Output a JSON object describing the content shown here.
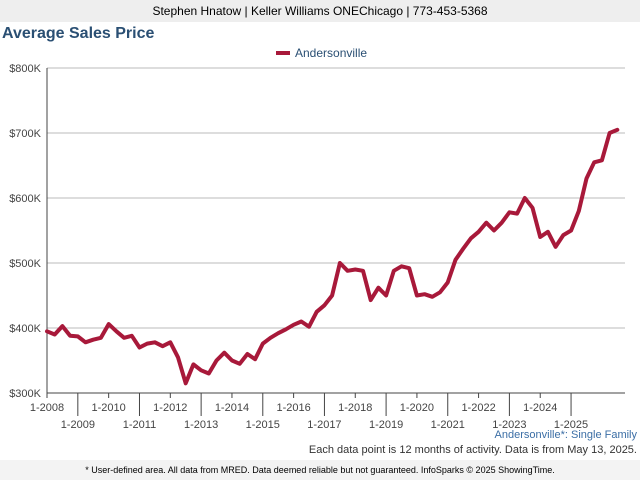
{
  "header": {
    "banner": "Stephen Hnatow | Keller Williams ONEChicago | 773-453-5368"
  },
  "chart_data": {
    "type": "line",
    "title": "Average Sales Price",
    "legend": {
      "placement": "top-center",
      "entries": [
        "Andersonville"
      ]
    },
    "y_ticks": [
      "$300K",
      "$400K",
      "$500K",
      "$600K",
      "$700K",
      "$800K"
    ],
    "ylim": [
      300000,
      800000
    ],
    "x_ticks_upper": [
      "1-2008",
      "1-2010",
      "1-2012",
      "1-2014",
      "1-2016",
      "1-2018",
      "1-2020",
      "1-2022",
      "1-2024"
    ],
    "x_ticks_lower": [
      "1-2009",
      "1-2011",
      "1-2013",
      "1-2015",
      "1-2017",
      "1-2019",
      "1-2021",
      "1-2023",
      "1-2025"
    ],
    "grid": "horizontal",
    "colors": {
      "series": "#a8193a",
      "grid": "#bbbbbb",
      "axis": "#444444"
    },
    "series": [
      {
        "name": "Andersonville",
        "points": [
          [
            "2008-01",
            395000
          ],
          [
            "2008-04",
            390000
          ],
          [
            "2008-07",
            403000
          ],
          [
            "2008-10",
            388000
          ],
          [
            "2009-01",
            387000
          ],
          [
            "2009-04",
            378000
          ],
          [
            "2009-07",
            382000
          ],
          [
            "2009-10",
            385000
          ],
          [
            "2010-01",
            406000
          ],
          [
            "2010-04",
            395000
          ],
          [
            "2010-07",
            385000
          ],
          [
            "2010-10",
            388000
          ],
          [
            "2011-01",
            370000
          ],
          [
            "2011-04",
            376000
          ],
          [
            "2011-07",
            378000
          ],
          [
            "2011-10",
            372000
          ],
          [
            "2012-01",
            378000
          ],
          [
            "2012-04",
            355000
          ],
          [
            "2012-07",
            315000
          ],
          [
            "2012-10",
            344000
          ],
          [
            "2013-01",
            335000
          ],
          [
            "2013-04",
            330000
          ],
          [
            "2013-07",
            350000
          ],
          [
            "2013-10",
            362000
          ],
          [
            "2014-01",
            350000
          ],
          [
            "2014-04",
            345000
          ],
          [
            "2014-07",
            360000
          ],
          [
            "2014-10",
            352000
          ],
          [
            "2015-01",
            376000
          ],
          [
            "2015-04",
            385000
          ],
          [
            "2015-07",
            392000
          ],
          [
            "2015-10",
            398000
          ],
          [
            "2016-01",
            405000
          ],
          [
            "2016-04",
            410000
          ],
          [
            "2016-07",
            402000
          ],
          [
            "2016-10",
            425000
          ],
          [
            "2017-01",
            435000
          ],
          [
            "2017-04",
            450000
          ],
          [
            "2017-07",
            500000
          ],
          [
            "2017-10",
            488000
          ],
          [
            "2018-01",
            490000
          ],
          [
            "2018-04",
            488000
          ],
          [
            "2018-07",
            443000
          ],
          [
            "2018-10",
            462000
          ],
          [
            "2019-01",
            450000
          ],
          [
            "2019-04",
            488000
          ],
          [
            "2019-07",
            495000
          ],
          [
            "2019-10",
            492000
          ],
          [
            "2020-01",
            450000
          ],
          [
            "2020-04",
            452000
          ],
          [
            "2020-07",
            448000
          ],
          [
            "2020-10",
            455000
          ],
          [
            "2021-01",
            470000
          ],
          [
            "2021-04",
            505000
          ],
          [
            "2021-07",
            522000
          ],
          [
            "2021-10",
            538000
          ],
          [
            "2022-01",
            548000
          ],
          [
            "2022-04",
            562000
          ],
          [
            "2022-07",
            550000
          ],
          [
            "2022-10",
            562000
          ],
          [
            "2023-01",
            578000
          ],
          [
            "2023-04",
            576000
          ],
          [
            "2023-07",
            600000
          ],
          [
            "2023-10",
            585000
          ],
          [
            "2024-01",
            540000
          ],
          [
            "2024-04",
            548000
          ],
          [
            "2024-07",
            525000
          ],
          [
            "2024-10",
            543000
          ],
          [
            "2025-01",
            550000
          ],
          [
            "2025-04",
            580000
          ],
          [
            "2025-07",
            630000
          ],
          [
            "2025-10",
            655000
          ],
          [
            "2026-01",
            658000
          ],
          [
            "2026-04",
            700000
          ],
          [
            "2026-07",
            705000
          ]
        ]
      }
    ]
  },
  "footer": {
    "series_caption": "Andersonville*: Single Family",
    "data_note": "Each data point is 12 months of activity. Data is from May 13, 2025.",
    "disclaimer": "* User-defined area. All data from MRED. Data deemed reliable but not guaranteed. InfoSparks © 2025 ShowingTime."
  }
}
